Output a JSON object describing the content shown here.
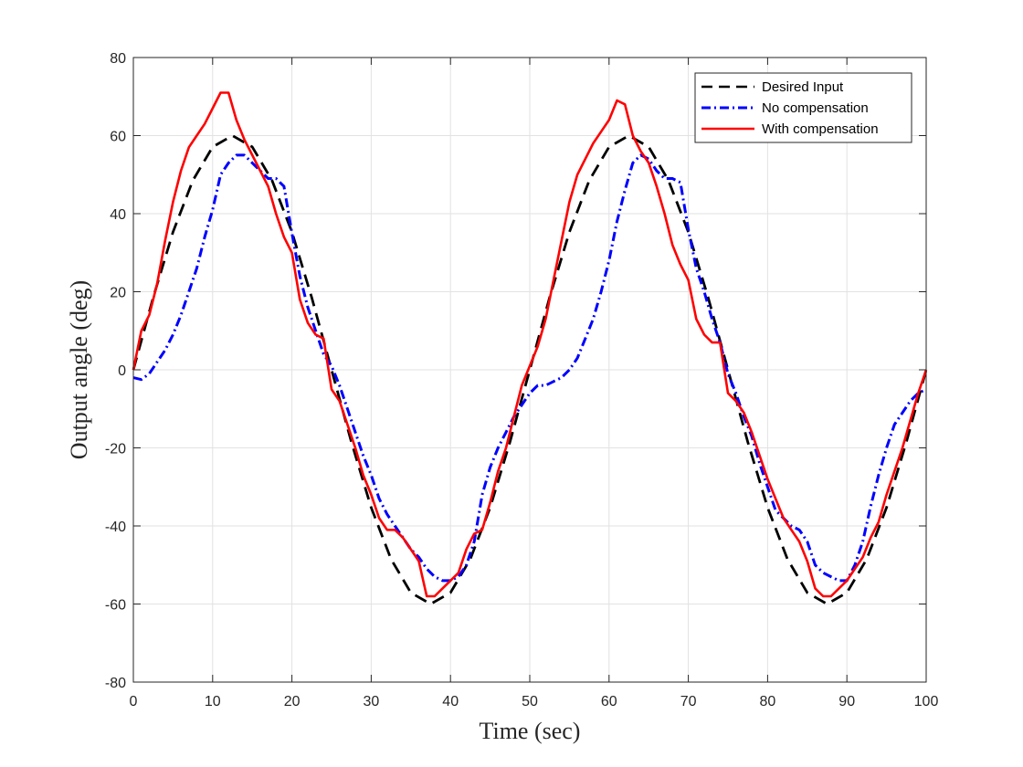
{
  "chart_data": {
    "type": "line",
    "title": "",
    "xlabel": "Time (sec)",
    "ylabel": "Output angle (deg)",
    "xlim": [
      0,
      100
    ],
    "ylim": [
      -80,
      80
    ],
    "xticks": [
      0,
      10,
      20,
      30,
      40,
      50,
      60,
      70,
      80,
      90,
      100
    ],
    "yticks": [
      -80,
      -60,
      -40,
      -20,
      0,
      20,
      40,
      60,
      80
    ],
    "grid": true,
    "legend_position": "top-right",
    "series": [
      {
        "name": "Desired Input",
        "color": "#000000",
        "style": "dashed",
        "x": [
          0,
          2.5,
          5,
          7.5,
          10,
          12.5,
          15,
          17.5,
          20,
          22.5,
          25,
          27.5,
          30,
          32.5,
          35,
          37.5,
          40,
          42.5,
          45,
          47.5,
          50,
          52.5,
          55,
          57.5,
          60,
          62.5,
          65,
          67.5,
          70,
          72.5,
          75,
          77.5,
          80,
          82.5,
          85,
          87.5,
          90,
          92.5,
          95,
          97.5,
          100
        ],
        "y": [
          0,
          18.5,
          35.3,
          48.5,
          57.1,
          60,
          57.1,
          48.5,
          35.3,
          18.5,
          0,
          -18.5,
          -35.3,
          -48.5,
          -57.1,
          -60,
          -57.1,
          -48.5,
          -35.3,
          -18.5,
          0,
          18.5,
          35.3,
          48.5,
          57.1,
          60,
          57.1,
          48.5,
          35.3,
          18.5,
          0,
          -18.5,
          -35.3,
          -48.5,
          -57.1,
          -60,
          -57.1,
          -48.5,
          -35.3,
          -18.5,
          0
        ]
      },
      {
        "name": "No compensation",
        "color": "#0000ff",
        "style": "dashdot",
        "x": [
          0,
          1,
          2,
          3,
          4,
          5,
          6,
          7,
          8,
          9,
          10,
          11,
          12,
          13,
          14,
          15,
          16,
          17,
          18,
          19,
          20,
          21,
          22,
          23,
          24,
          25,
          26,
          27,
          28,
          29,
          30,
          31,
          32,
          33,
          34,
          35,
          36,
          37,
          38,
          39,
          40,
          41,
          42,
          43,
          44,
          45,
          46,
          47,
          48,
          49,
          50,
          51,
          52,
          53,
          54,
          55,
          56,
          57,
          58,
          59,
          60,
          61,
          62,
          63,
          64,
          65,
          66,
          67,
          68,
          69,
          70,
          71,
          72,
          73,
          74,
          75,
          76,
          77,
          78,
          79,
          80,
          81,
          82,
          83,
          84,
          85,
          86,
          87,
          88,
          89,
          90,
          91,
          92,
          93,
          94,
          95,
          96,
          97,
          98,
          99,
          100
        ],
        "y": [
          -2,
          -2.5,
          -1,
          2,
          5,
          9,
          14,
          20,
          26,
          34,
          41,
          50,
          53,
          55,
          55,
          53,
          51,
          49,
          49,
          47,
          35,
          24,
          16,
          10,
          4,
          1,
          -4,
          -10,
          -16,
          -22,
          -27,
          -33,
          -37,
          -40,
          -43,
          -46,
          -48,
          -51,
          -53,
          -54,
          -54,
          -53,
          -50,
          -44,
          -32,
          -25,
          -20,
          -16,
          -12,
          -9,
          -6,
          -4,
          -4,
          -3,
          -2,
          0,
          3,
          8,
          13,
          20,
          28,
          38,
          46,
          53,
          55,
          54,
          51,
          49,
          49,
          48,
          36,
          26,
          20,
          13,
          7,
          -1,
          -6,
          -12,
          -17,
          -24,
          -30,
          -36,
          -38,
          -40,
          -41,
          -44,
          -50,
          -52,
          -53,
          -54,
          -54,
          -50,
          -44,
          -35,
          -27,
          -20,
          -14,
          -11,
          -8,
          -6,
          -5
        ]
      },
      {
        "name": "With compensation",
        "color": "#ff0000",
        "style": "solid",
        "x": [
          0,
          1,
          2,
          3,
          4,
          5,
          6,
          7,
          8,
          9,
          10,
          11,
          12,
          13,
          14,
          15,
          16,
          17,
          18,
          19,
          20,
          21,
          22,
          23,
          24,
          25,
          26,
          27,
          28,
          29,
          30,
          31,
          32,
          33,
          34,
          35,
          36,
          37,
          38,
          39,
          40,
          41,
          42,
          43,
          44,
          45,
          46,
          47,
          48,
          49,
          50,
          51,
          52,
          53,
          54,
          55,
          56,
          57,
          58,
          59,
          60,
          61,
          62,
          63,
          64,
          65,
          66,
          67,
          68,
          69,
          70,
          71,
          72,
          73,
          74,
          75,
          76,
          77,
          78,
          79,
          80,
          81,
          82,
          83,
          84,
          85,
          86,
          87,
          88,
          89,
          90,
          91,
          92,
          93,
          94,
          95,
          96,
          97,
          98,
          99,
          100
        ],
        "y": [
          0,
          10,
          14,
          22,
          33,
          43,
          51,
          57,
          60,
          63,
          67,
          71,
          71,
          64,
          59,
          55,
          51,
          47,
          40,
          34,
          30,
          18,
          12,
          9,
          8,
          -5,
          -8,
          -14,
          -20,
          -27,
          -32,
          -38,
          -41,
          -41,
          -43,
          -46,
          -49,
          -58,
          -58,
          -56,
          -54,
          -52,
          -46,
          -42,
          -41,
          -34,
          -26,
          -20,
          -12,
          -4,
          1,
          6,
          13,
          23,
          33,
          43,
          50,
          54,
          58,
          61,
          64,
          69,
          68,
          60,
          56,
          53,
          47,
          40,
          32,
          27,
          23,
          13,
          9,
          7,
          7,
          -6,
          -8,
          -11,
          -16,
          -22,
          -28,
          -33,
          -38,
          -41,
          -44,
          -49,
          -56,
          -58,
          -58,
          -56,
          -54,
          -51,
          -48,
          -43,
          -39,
          -32,
          -26,
          -20,
          -13,
          -6,
          0
        ]
      }
    ]
  }
}
